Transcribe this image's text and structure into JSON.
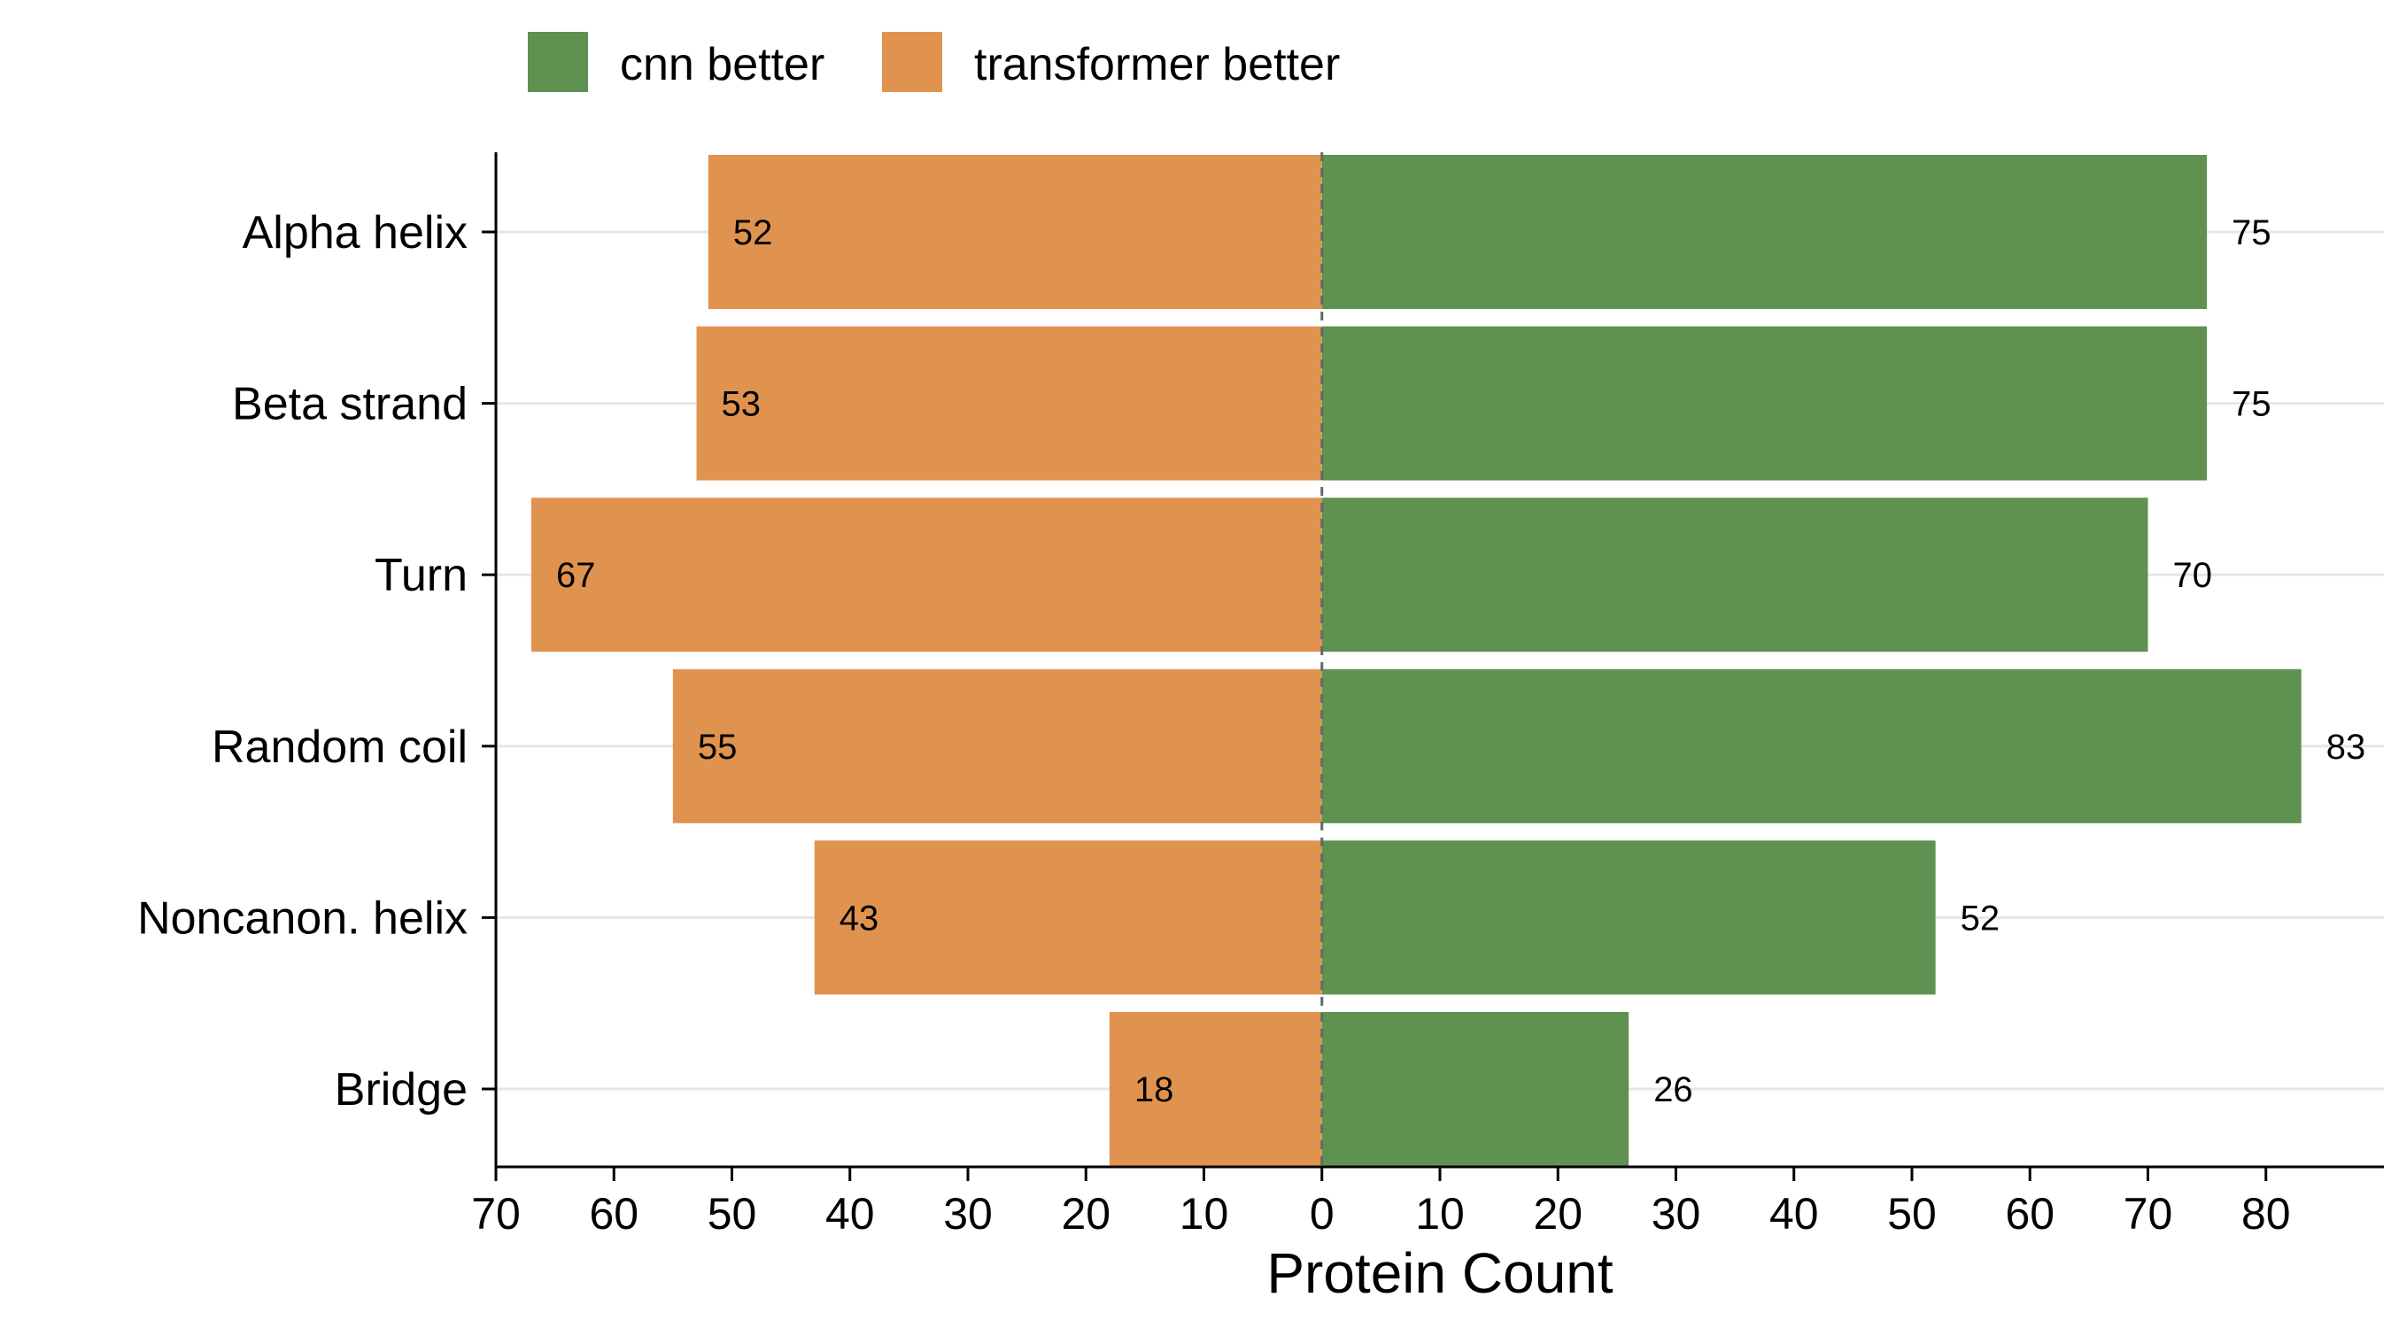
{
  "chart_data": {
    "type": "bar",
    "orientation": "horizontal-diverging",
    "categories": [
      "Alpha helix",
      "Beta strand",
      "Turn",
      "Random coil",
      "Noncanon. helix",
      "Bridge"
    ],
    "series": [
      {
        "name": "cnn better",
        "values": [
          75,
          75,
          70,
          83,
          52,
          26
        ],
        "color": "#5f9150",
        "direction": "right"
      },
      {
        "name": "transformer better",
        "values": [
          52,
          53,
          67,
          55,
          43,
          18
        ],
        "color": "#e0934f",
        "direction": "left"
      }
    ],
    "xlabel": "Protein Count",
    "ylabel": "",
    "title": "",
    "xlim": [
      -70,
      90
    ],
    "xticks": [
      -70,
      -60,
      -50,
      -40,
      -30,
      -20,
      -10,
      0,
      10,
      20,
      30,
      40,
      50,
      60,
      70,
      80
    ],
    "xtick_labels": [
      "70",
      "60",
      "50",
      "40",
      "30",
      "20",
      "10",
      "0",
      "10",
      "20",
      "30",
      "40",
      "50",
      "60",
      "70",
      "80"
    ],
    "grid": "horizontal",
    "legend_position": "top",
    "zero_line": "dashed"
  }
}
